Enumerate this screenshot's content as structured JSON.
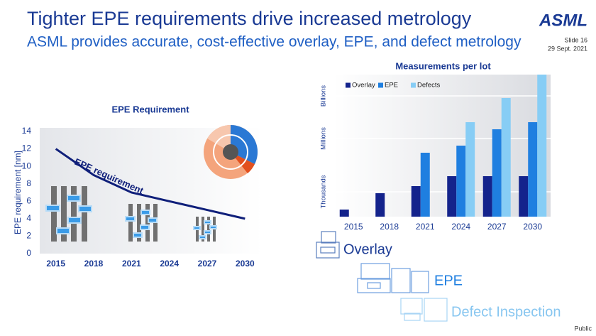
{
  "header": {
    "title": "Tighter EPE requirements drive increased metrology",
    "subtitle": "ASML provides accurate, cost-effective overlay, EPE, and defect metrology",
    "logo": "ASML",
    "slide": "Slide 16",
    "date": "29 Sept. 2021"
  },
  "chart_data": [
    {
      "type": "line",
      "title": "EPE Requirement",
      "y_label": "EPE requirement [nm]",
      "annotation": "EPE requirement",
      "categories": [
        "2015",
        "2018",
        "2021",
        "2024",
        "2027",
        "2030"
      ],
      "values": [
        12,
        9,
        7,
        6,
        5,
        4
      ],
      "color": "#0f1f7a",
      "ylim": [
        0,
        14
      ],
      "yticks": [
        0,
        2,
        4,
        6,
        8,
        10,
        12,
        14
      ],
      "grid": false
    },
    {
      "type": "bar",
      "title": "Measurements per lot",
      "categories": [
        "2015",
        "2018",
        "2021",
        "2024",
        "2027",
        "2030"
      ],
      "series": [
        {
          "name": "Overlay",
          "color": "#14238c",
          "values": [
            0.5,
            1.65,
            2.15,
            2.85,
            2.85,
            2.85
          ]
        },
        {
          "name": "EPE",
          "color": "#1f7fe0",
          "values": [
            null,
            null,
            4.5,
            5.0,
            6.15,
            6.65
          ]
        },
        {
          "name": "Defects",
          "color": "#87cdf5",
          "values": [
            null,
            null,
            null,
            6.65,
            8.35,
            10
          ]
        }
      ],
      "ylim": [
        0,
        10
      ],
      "yticks": [
        {
          "value": 1.75,
          "label": "Thousands"
        },
        {
          "value": 5.5,
          "label": "Millions"
        },
        {
          "value": 8.5,
          "label": "Billions"
        }
      ],
      "grid": true,
      "legend": "top-left"
    }
  ],
  "tools": {
    "overlay": "Overlay",
    "epe": "EPE",
    "defect": "Defect Inspection"
  },
  "footer": {
    "classification": "Public"
  }
}
